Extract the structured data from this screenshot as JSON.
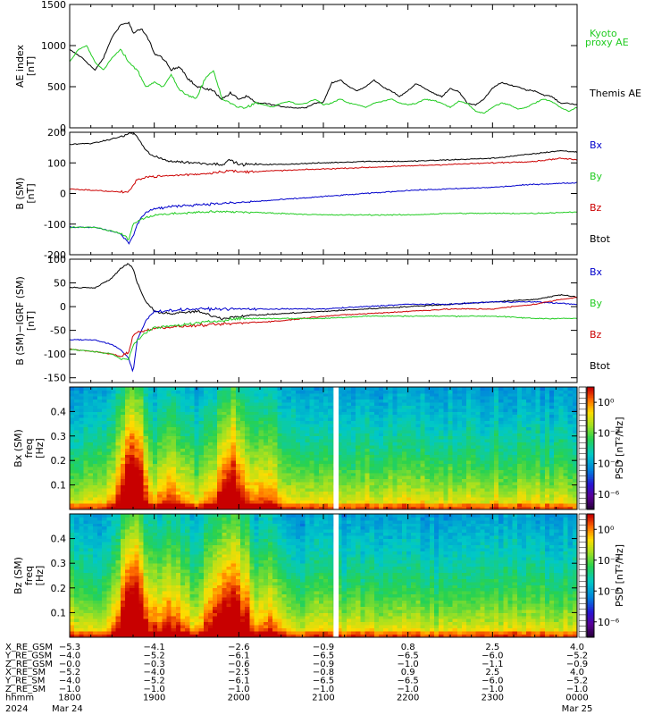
{
  "chart_data": [
    {
      "type": "line",
      "ylabel": [
        "AE index",
        "[nT]"
      ],
      "yticks": [
        0,
        500,
        1000,
        1500
      ],
      "ylim": [
        0,
        1500
      ],
      "xlim_hours": [
        0,
        6
      ],
      "legend": [
        {
          "name": "Kyoto",
          "color": "#22cc22"
        },
        {
          "name": "proxy AE",
          "color": "#22cc22"
        },
        {
          "name": "Themis AE",
          "color": "#000000"
        }
      ],
      "series": [
        {
          "name": "Themis AE",
          "color": "#000000",
          "x": [
            0,
            0.15,
            0.3,
            0.4,
            0.5,
            0.6,
            0.7,
            0.75,
            0.85,
            0.95,
            1.0,
            1.1,
            1.2,
            1.3,
            1.4,
            1.5,
            1.6,
            1.7,
            1.8,
            1.9,
            2.0,
            2.1,
            2.2,
            2.3,
            2.4,
            2.5,
            2.6,
            2.7,
            2.8,
            2.9,
            3.0,
            3.1,
            3.2,
            3.3,
            3.4,
            3.5,
            3.6,
            3.7,
            3.8,
            3.9,
            4.0,
            4.1,
            4.2,
            4.3,
            4.4,
            4.5,
            4.6,
            4.7,
            4.8,
            4.9,
            5.0,
            5.1,
            5.2,
            5.3,
            5.4,
            5.5,
            5.6,
            5.7,
            5.8,
            5.9,
            6.0
          ],
          "y": [
            950,
            850,
            700,
            850,
            1100,
            1250,
            1280,
            1150,
            1200,
            1050,
            900,
            850,
            700,
            750,
            600,
            500,
            480,
            450,
            350,
            420,
            350,
            380,
            300,
            300,
            280,
            260,
            250,
            240,
            250,
            300,
            310,
            550,
            580,
            500,
            450,
            500,
            580,
            500,
            450,
            380,
            450,
            540,
            480,
            420,
            380,
            480,
            440,
            300,
            280,
            350,
            480,
            550,
            520,
            500,
            460,
            450,
            400,
            380,
            300,
            300,
            280
          ]
        },
        {
          "name": "Kyoto proxy AE",
          "color": "#22cc22",
          "x": [
            0,
            0.1,
            0.2,
            0.3,
            0.4,
            0.5,
            0.6,
            0.7,
            0.8,
            0.9,
            1.0,
            1.1,
            1.2,
            1.3,
            1.4,
            1.5,
            1.6,
            1.7,
            1.8,
            1.9,
            2.0,
            2.1,
            2.2,
            2.3,
            2.4,
            2.5,
            2.6,
            2.7,
            2.8,
            2.9,
            3.0,
            3.1,
            3.2,
            3.3,
            3.4,
            3.5,
            3.6,
            3.7,
            3.8,
            3.9,
            4.0,
            4.1,
            4.2,
            4.3,
            4.4,
            4.5,
            4.6,
            4.7,
            4.8,
            4.9,
            5.0,
            5.1,
            5.2,
            5.3,
            5.4,
            5.5,
            5.6,
            5.7,
            5.8,
            5.9,
            6.0
          ],
          "y": [
            800,
            950,
            1000,
            800,
            700,
            850,
            950,
            800,
            700,
            500,
            550,
            500,
            650,
            450,
            400,
            350,
            600,
            700,
            350,
            300,
            250,
            250,
            300,
            280,
            250,
            300,
            320,
            280,
            300,
            350,
            280,
            300,
            350,
            300,
            280,
            250,
            300,
            320,
            350,
            300,
            280,
            300,
            350,
            330,
            300,
            250,
            320,
            300,
            200,
            180,
            250,
            300,
            280,
            230,
            250,
            300,
            350,
            320,
            250,
            200,
            250
          ]
        }
      ]
    },
    {
      "type": "line",
      "ylabel": [
        "B (SM)",
        "[nT]"
      ],
      "yticks": [
        -200,
        -100,
        0,
        100,
        200
      ],
      "ylim": [
        -200,
        200
      ],
      "xlim_hours": [
        0,
        6
      ],
      "legend": [
        {
          "name": "Bx",
          "color": "#0000cc"
        },
        {
          "name": "By",
          "color": "#22cc22"
        },
        {
          "name": "Bz",
          "color": "#cc0000"
        },
        {
          "name": "Btot",
          "color": "#000000"
        }
      ],
      "series": [
        {
          "name": "Btot",
          "color": "#000000",
          "x": [
            0,
            0.3,
            0.6,
            0.75,
            0.8,
            0.9,
            1.0,
            1.2,
            1.5,
            1.8,
            1.9,
            2.0,
            2.5,
            3.0,
            3.5,
            4.0,
            4.5,
            5.0,
            5.5,
            5.8,
            6.0
          ],
          "y": [
            160,
            165,
            185,
            200,
            185,
            140,
            120,
            105,
            100,
            95,
            110,
            95,
            95,
            100,
            105,
            105,
            110,
            115,
            130,
            140,
            135
          ]
        },
        {
          "name": "Bz",
          "color": "#cc0000",
          "x": [
            0,
            0.3,
            0.6,
            0.7,
            0.75,
            0.8,
            0.9,
            1.0,
            1.3,
            1.6,
            1.9,
            2.0,
            2.5,
            3.0,
            3.5,
            4.0,
            4.5,
            5.0,
            5.5,
            5.8,
            6.0
          ],
          "y": [
            15,
            10,
            5,
            5,
            25,
            45,
            55,
            55,
            60,
            65,
            75,
            70,
            75,
            80,
            85,
            90,
            95,
            100,
            105,
            115,
            110
          ]
        },
        {
          "name": "Bx",
          "color": "#0000cc",
          "x": [
            0,
            0.3,
            0.6,
            0.7,
            0.75,
            0.8,
            0.9,
            1.0,
            1.3,
            1.6,
            2.0,
            2.5,
            3.0,
            3.5,
            4.0,
            4.5,
            5.0,
            5.5,
            6.0
          ],
          "y": [
            -110,
            -110,
            -130,
            -165,
            -140,
            -100,
            -60,
            -50,
            -40,
            -35,
            -30,
            -20,
            -10,
            0,
            10,
            15,
            20,
            30,
            35
          ]
        },
        {
          "name": "By",
          "color": "#22cc22",
          "x": [
            0,
            0.3,
            0.6,
            0.7,
            0.75,
            0.8,
            0.9,
            1.0,
            1.3,
            1.6,
            2.0,
            2.5,
            3.0,
            3.5,
            4.0,
            4.5,
            5.0,
            5.5,
            6.0
          ],
          "y": [
            -110,
            -110,
            -130,
            -150,
            -100,
            -90,
            -80,
            -70,
            -65,
            -60,
            -60,
            -65,
            -70,
            -70,
            -70,
            -65,
            -65,
            -65,
            -60
          ]
        }
      ]
    },
    {
      "type": "line",
      "ylabel": [
        "B (SM)−IGRF (SM)",
        "[nT]"
      ],
      "yticks": [
        -150,
        -100,
        -50,
        0,
        50,
        100
      ],
      "ylim": [
        -160,
        100
      ],
      "xlim_hours": [
        0,
        6
      ],
      "legend": [
        {
          "name": "Bx",
          "color": "#0000cc"
        },
        {
          "name": "By",
          "color": "#22cc22"
        },
        {
          "name": "Bz",
          "color": "#cc0000"
        },
        {
          "name": "Btot",
          "color": "#000000"
        }
      ],
      "series": [
        {
          "name": "Btot",
          "color": "#000000",
          "x": [
            0,
            0.3,
            0.5,
            0.6,
            0.7,
            0.75,
            0.8,
            0.85,
            0.9,
            1.0,
            1.2,
            1.5,
            1.8,
            2.0,
            2.5,
            3.0,
            3.5,
            4.0,
            4.5,
            5.0,
            5.5,
            5.8,
            6.0
          ],
          "y": [
            40,
            40,
            60,
            80,
            90,
            80,
            50,
            30,
            10,
            -10,
            -15,
            -10,
            -25,
            -20,
            -15,
            -10,
            -5,
            0,
            5,
            10,
            15,
            25,
            20
          ]
        },
        {
          "name": "Bx",
          "color": "#0000cc",
          "x": [
            0,
            0.3,
            0.5,
            0.6,
            0.7,
            0.75,
            0.8,
            0.9,
            1.0,
            1.5,
            2.0,
            2.5,
            3.0,
            3.5,
            4.0,
            4.5,
            5.0,
            5.5,
            6.0
          ],
          "y": [
            -70,
            -70,
            -80,
            -90,
            -110,
            -140,
            -70,
            -30,
            -10,
            -5,
            -5,
            -5,
            -5,
            0,
            5,
            5,
            10,
            10,
            5
          ]
        },
        {
          "name": "Bz",
          "color": "#cc0000",
          "x": [
            0,
            0.3,
            0.5,
            0.6,
            0.7,
            0.75,
            0.8,
            0.9,
            1.0,
            1.5,
            2.0,
            2.5,
            3.0,
            3.5,
            4.0,
            4.5,
            5.0,
            5.5,
            5.8,
            6.0
          ],
          "y": [
            -90,
            -95,
            -100,
            -105,
            -95,
            -60,
            -55,
            -50,
            -45,
            -40,
            -35,
            -30,
            -20,
            -15,
            -10,
            -5,
            -5,
            5,
            15,
            20
          ]
        },
        {
          "name": "By",
          "color": "#22cc22",
          "x": [
            0,
            0.3,
            0.5,
            0.6,
            0.7,
            0.75,
            0.8,
            0.9,
            1.0,
            1.5,
            2.0,
            2.5,
            3.0,
            3.5,
            4.0,
            4.5,
            5.0,
            5.5,
            6.0
          ],
          "y": [
            -90,
            -95,
            -100,
            -110,
            -110,
            -80,
            -70,
            -55,
            -45,
            -35,
            -25,
            -25,
            -25,
            -20,
            -20,
            -20,
            -20,
            -25,
            -25
          ]
        }
      ]
    },
    {
      "type": "heatmap",
      "ylabel": [
        "Bx (SM)",
        "freq",
        "[Hz]"
      ],
      "yticks": [
        0.1,
        0.2,
        0.3,
        0.4
      ],
      "ylim": [
        0,
        0.5
      ],
      "xlim_hours": [
        0,
        6
      ],
      "data_gap_hours": [
        3.12,
        3.18
      ],
      "colorbar": {
        "label": "PSD [nT²/Hz]",
        "ticks": [
          "10⁰",
          "10⁻²",
          "10⁻⁴",
          "10⁻⁶"
        ],
        "range_log10": [
          -7,
          1
        ]
      },
      "bursts": [
        {
          "center_hours": 0.75,
          "width_hours": 0.18,
          "strength": 1.0
        },
        {
          "center_hours": 1.2,
          "width_hours": 0.2,
          "strength": 0.35
        },
        {
          "center_hours": 1.9,
          "width_hours": 0.22,
          "strength": 0.75
        },
        {
          "center_hours": 2.3,
          "width_hours": 0.2,
          "strength": 0.3
        }
      ]
    },
    {
      "type": "heatmap",
      "ylabel": [
        "Bz (SM)",
        "freq",
        "[Hz]"
      ],
      "yticks": [
        0.1,
        0.2,
        0.3,
        0.4
      ],
      "ylim": [
        0,
        0.5
      ],
      "xlim_hours": [
        0,
        6
      ],
      "data_gap_hours": [
        3.12,
        3.18
      ],
      "colorbar": {
        "label": "PSD [nT²/Hz]",
        "ticks": [
          "10⁰",
          "10⁻²",
          "10⁻⁴",
          "10⁻⁶"
        ],
        "range_log10": [
          -7,
          1
        ]
      },
      "bursts": [
        {
          "center_hours": 0.75,
          "width_hours": 0.2,
          "strength": 1.0
        },
        {
          "center_hours": 1.15,
          "width_hours": 0.25,
          "strength": 0.45
        },
        {
          "center_hours": 1.9,
          "width_hours": 0.3,
          "strength": 0.8
        },
        {
          "center_hours": 2.35,
          "width_hours": 0.2,
          "strength": 0.3
        }
      ]
    }
  ],
  "orbit": {
    "rows": [
      {
        "label": "X_RE_GSM",
        "values": [
          "−5.3",
          "−4.1",
          "−2.6",
          "−0.9",
          "0.8",
          "2.5",
          "4.0"
        ]
      },
      {
        "label": "Y_RE_GSM",
        "values": [
          "−4.0",
          "−5.2",
          "−6.1",
          "−6.5",
          "−6.5",
          "−6.0",
          "−5.2"
        ]
      },
      {
        "label": "Z_RE_GSM",
        "values": [
          "−0.0",
          "−0.3",
          "−0.6",
          "−0.9",
          "−1.0",
          "−1.1",
          "−0.9"
        ]
      },
      {
        "label": "X_RE_SM",
        "values": [
          "−5.2",
          "−4.0",
          "−2.5",
          "−0.8",
          "0.9",
          "2.5",
          "4.0"
        ]
      },
      {
        "label": "Y_RE_SM",
        "values": [
          "−4.0",
          "−5.2",
          "−6.1",
          "−6.5",
          "−6.5",
          "−6.0",
          "−5.2"
        ]
      },
      {
        "label": "Z_RE_SM",
        "values": [
          "−1.0",
          "−1.0",
          "−1.0",
          "−1.0",
          "−1.0",
          "−1.0",
          "−1.0"
        ]
      },
      {
        "label": "hhmm",
        "values": [
          "1800",
          "1900",
          "2000",
          "2100",
          "2200",
          "2300",
          "0000"
        ]
      }
    ],
    "year": "2024",
    "start_date": "Mar 24",
    "end_date": "Mar 25"
  }
}
